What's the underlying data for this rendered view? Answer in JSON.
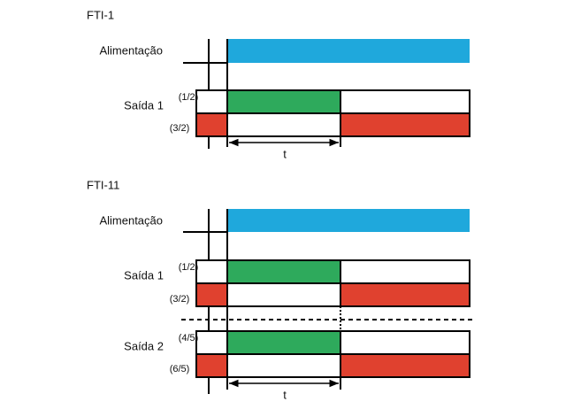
{
  "sections": [
    {
      "title": "FTI-1",
      "power_label": "Alimentação",
      "outputs": [
        {
          "label": "Saída 1",
          "contact_on": "(1/2)",
          "contact_off": "(3/2)"
        }
      ],
      "time_label": "t"
    },
    {
      "title": "FTI-11",
      "power_label": "Alimentação",
      "outputs": [
        {
          "label": "Saída 1",
          "contact_on": "(1/2)",
          "contact_off": "(3/2)"
        },
        {
          "label": "Saída 2",
          "contact_on": "(4/5)",
          "contact_off": "(6/5)"
        }
      ],
      "time_label": "t"
    }
  ]
}
